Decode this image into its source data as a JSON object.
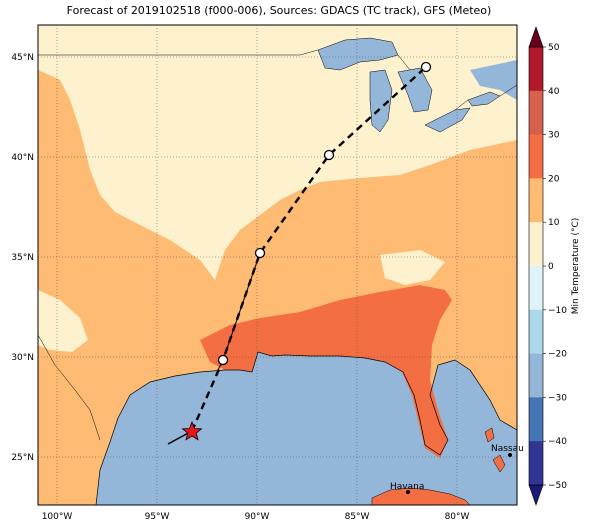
{
  "title": "Forecast of 2019102518 (f000-006), Sources: GDACS (TC track), GFS (Meteo)",
  "colors": {
    "ocean": "#93b6d9",
    "band_10_20": "#fdbb73",
    "band_20_30": "#f46e44",
    "band_0_10": "#fef1cd",
    "storm_marker": "#e8141b",
    "track": "#000000"
  },
  "axes": {
    "lon_labels": [
      "100°W",
      "95°W",
      "90°W",
      "85°W",
      "80°W"
    ],
    "lat_labels": [
      "45°N",
      "40°N",
      "35°N",
      "30°N",
      "25°N"
    ]
  },
  "places": [
    {
      "name": "Nassau"
    },
    {
      "name": "Havana"
    }
  ],
  "colorbar": {
    "label": "Min Temperature (°C)",
    "ticks": [
      "50",
      "40",
      "30",
      "20",
      "10",
      "0",
      "−10",
      "−20",
      "−30",
      "−40",
      "−50"
    ],
    "colors": [
      "#67001f",
      "#b2182b",
      "#d6604d",
      "#f46e44",
      "#fdbb73",
      "#fef1cd",
      "#e0f3f8",
      "#abd9e9",
      "#93b6d9",
      "#4575b4",
      "#313695",
      "#1a1a7a"
    ]
  },
  "track": {
    "start_marker": "star",
    "forecast_markers": "open-circle"
  }
}
